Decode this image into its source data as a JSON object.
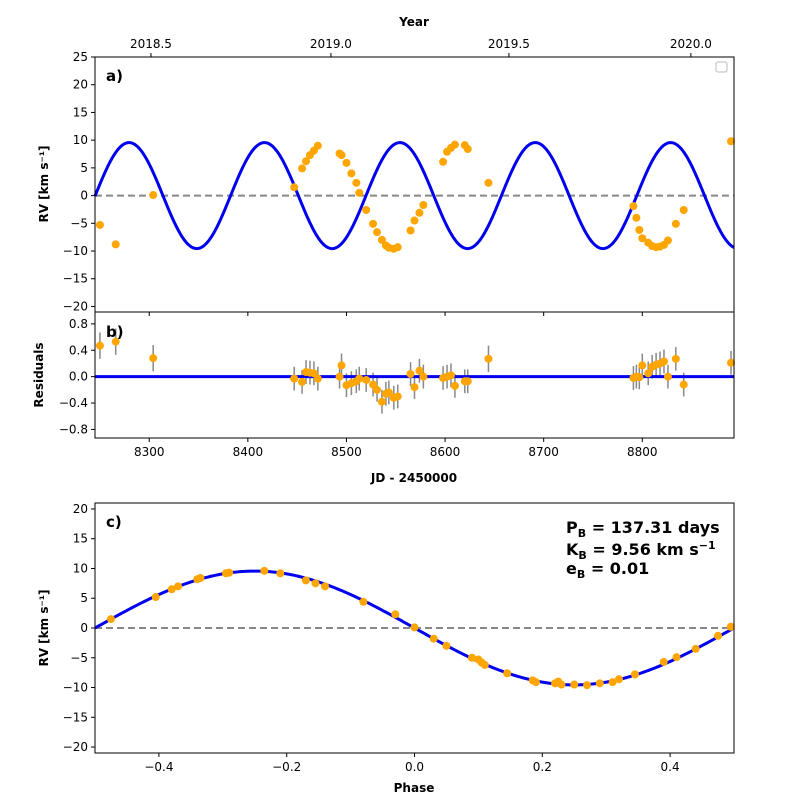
{
  "chart_data": [
    {
      "id": "a",
      "type": "line",
      "panel_label": "a)",
      "title": "",
      "xlabel": "",
      "ylabel": "RV [km s⁻¹]",
      "top_xlabel": "Year",
      "xlim": [
        8245,
        8893
      ],
      "ylim": [
        -21,
        25
      ],
      "yticks": [
        -20,
        -15,
        -10,
        -5,
        0,
        5,
        10,
        15,
        20,
        25
      ],
      "yticklabels": [
        "−20",
        "−15",
        "−10",
        "−5",
        "0",
        "5",
        "10",
        "15",
        "20",
        "25"
      ],
      "top_ticks": [
        {
          "label": "2018.5",
          "jd": 8301.75
        },
        {
          "label": "2019.0",
          "jd": 8484.25
        },
        {
          "label": "2019.5",
          "jd": 8664.75
        },
        {
          "label": "2020.0",
          "jd": 8849.25
        }
      ],
      "model": {
        "period_days": 137.31,
        "amplitude": 9.56,
        "phase_zero_jd": 8588.5,
        "color": "#0000ee"
      },
      "zero_line": {
        "value": 0,
        "color": "#888888"
      },
      "points": {
        "color": "#ffa500",
        "x": [
          8250,
          8266,
          8304,
          8447,
          8455,
          8459,
          8463,
          8467,
          8471,
          8493,
          8495,
          8500,
          8505,
          8510,
          8513,
          8520,
          8527,
          8531,
          8536,
          8540,
          8543,
          8548,
          8552,
          8565,
          8569,
          8574,
          8578,
          8598,
          8602,
          8606,
          8610,
          8620,
          8623,
          8644,
          8791,
          8794,
          8797,
          8800,
          8806,
          8810,
          8814,
          8818,
          8822,
          8826,
          8834,
          8842,
          8890
        ],
        "y": [
          -5.3,
          -8.8,
          0.1,
          1.5,
          4.9,
          6.2,
          7.3,
          8.1,
          9.0,
          7.6,
          7.3,
          5.9,
          4.0,
          2.3,
          0.5,
          -2.6,
          -5.1,
          -6.6,
          -8.0,
          -9.0,
          -9.4,
          -9.6,
          -9.3,
          -6.3,
          -4.5,
          -3.1,
          -1.7,
          6.1,
          7.9,
          8.6,
          9.2,
          9.1,
          8.4,
          2.3,
          -1.9,
          -4.0,
          -6.2,
          -7.7,
          -8.5,
          -9.1,
          -9.3,
          -9.2,
          -8.9,
          -8.1,
          -5.1,
          -2.6,
          9.8
        ]
      }
    },
    {
      "id": "b",
      "type": "scatter",
      "panel_label": "b)",
      "title": "",
      "xlabel": "JD - 2450000",
      "ylabel": "Residuals",
      "xlim": [
        8245,
        8893
      ],
      "ylim": [
        -0.93,
        0.98
      ],
      "xticks": [
        8300,
        8400,
        8500,
        8600,
        8700,
        8800
      ],
      "xticklabels": [
        "8300",
        "8400",
        "8500",
        "8600",
        "8700",
        "8800"
      ],
      "yticks": [
        -0.8,
        -0.4,
        0.0,
        0.4,
        0.8
      ],
      "yticklabels": [
        "−0.8",
        "−0.4",
        "0.0",
        "0.4",
        "0.8"
      ],
      "zero_line": {
        "value": 0,
        "color": "#0000ee"
      },
      "points": {
        "color": "#ffa500",
        "errorbar_color": "#888888",
        "x": [
          8250,
          8266,
          8304,
          8447,
          8455,
          8459,
          8463,
          8467,
          8471,
          8493,
          8495,
          8500,
          8505,
          8510,
          8513,
          8520,
          8527,
          8531,
          8536,
          8540,
          8543,
          8548,
          8552,
          8565,
          8569,
          8574,
          8578,
          8598,
          8602,
          8606,
          8610,
          8620,
          8623,
          8644,
          8791,
          8794,
          8797,
          8800,
          8806,
          8810,
          8814,
          8818,
          8822,
          8826,
          8834,
          8842,
          8890
        ],
        "y": [
          0.47,
          0.53,
          0.28,
          -0.03,
          -0.08,
          0.07,
          0.06,
          0.05,
          -0.03,
          0.0,
          0.17,
          -0.13,
          -0.1,
          -0.07,
          -0.03,
          -0.05,
          -0.12,
          -0.2,
          -0.38,
          -0.26,
          -0.24,
          -0.32,
          -0.3,
          0.04,
          -0.16,
          0.09,
          0.0,
          -0.02,
          0.0,
          0.02,
          -0.14,
          -0.07,
          -0.07,
          0.27,
          -0.02,
          0.0,
          -0.01,
          0.17,
          0.05,
          0.15,
          0.18,
          0.2,
          0.23,
          0.0,
          0.27,
          -0.12,
          0.21
        ],
        "err": [
          0.2,
          0.2,
          0.2,
          0.18,
          0.18,
          0.18,
          0.18,
          0.18,
          0.18,
          0.18,
          0.18,
          0.18,
          0.18,
          0.18,
          0.18,
          0.18,
          0.18,
          0.18,
          0.18,
          0.18,
          0.18,
          0.18,
          0.18,
          0.18,
          0.18,
          0.18,
          0.18,
          0.18,
          0.18,
          0.18,
          0.18,
          0.18,
          0.18,
          0.2,
          0.18,
          0.18,
          0.18,
          0.18,
          0.18,
          0.18,
          0.18,
          0.18,
          0.18,
          0.18,
          0.18,
          0.18,
          0.18
        ]
      }
    },
    {
      "id": "c",
      "type": "line",
      "panel_label": "c)",
      "title": "",
      "xlabel": "Phase",
      "ylabel": "RV [km s⁻¹]",
      "xlim": [
        -0.5,
        0.5
      ],
      "ylim": [
        -21,
        21
      ],
      "xticks": [
        -0.4,
        -0.2,
        0.0,
        0.2,
        0.4
      ],
      "xticklabels": [
        "−0.4",
        "−0.2",
        "0.0",
        "0.2",
        "0.4"
      ],
      "yticks": [
        -20,
        -15,
        -10,
        -5,
        0,
        5,
        10,
        15,
        20
      ],
      "yticklabels": [
        "−20",
        "−15",
        "−10",
        "−5",
        "0",
        "5",
        "10",
        "15",
        "20"
      ],
      "model": {
        "amplitude": 9.56,
        "color": "#0000ee"
      },
      "zero_line": {
        "value": 0,
        "color": "#888888"
      },
      "annotations": {
        "period": {
          "symbol": "P",
          "sub": "B",
          "text": " = 137.31 days"
        },
        "semi_amplitude": {
          "symbol": "K",
          "sub": "B",
          "text": " = 9.56 km s",
          "sup": "−1"
        },
        "eccentricity": {
          "symbol": "e",
          "sub": "B",
          "text": " = 0.01"
        }
      },
      "points": {
        "color": "#ffa500",
        "x": [
          -0.475,
          -0.405,
          -0.38,
          -0.37,
          -0.34,
          -0.335,
          -0.295,
          -0.29,
          -0.235,
          -0.21,
          -0.17,
          -0.155,
          -0.14,
          -0.08,
          -0.03,
          0.0,
          0.03,
          0.05,
          0.09,
          0.1,
          0.105,
          0.11,
          0.145,
          0.185,
          0.19,
          0.22,
          0.225,
          0.23,
          0.25,
          0.27,
          0.29,
          0.31,
          0.32,
          0.345,
          0.39,
          0.41,
          0.44,
          0.475,
          0.495
        ],
        "y": [
          1.5,
          5.2,
          6.5,
          7.0,
          8.2,
          8.4,
          9.2,
          9.3,
          9.6,
          9.2,
          8.0,
          7.5,
          7.0,
          4.4,
          2.3,
          0.1,
          -1.8,
          -3.0,
          -5.0,
          -5.3,
          -5.8,
          -6.2,
          -7.6,
          -8.8,
          -9.1,
          -9.3,
          -9.0,
          -9.5,
          -9.5,
          -9.6,
          -9.3,
          -9.1,
          -8.6,
          -7.8,
          -5.7,
          -4.9,
          -3.5,
          -1.3,
          0.2
        ]
      }
    }
  ]
}
